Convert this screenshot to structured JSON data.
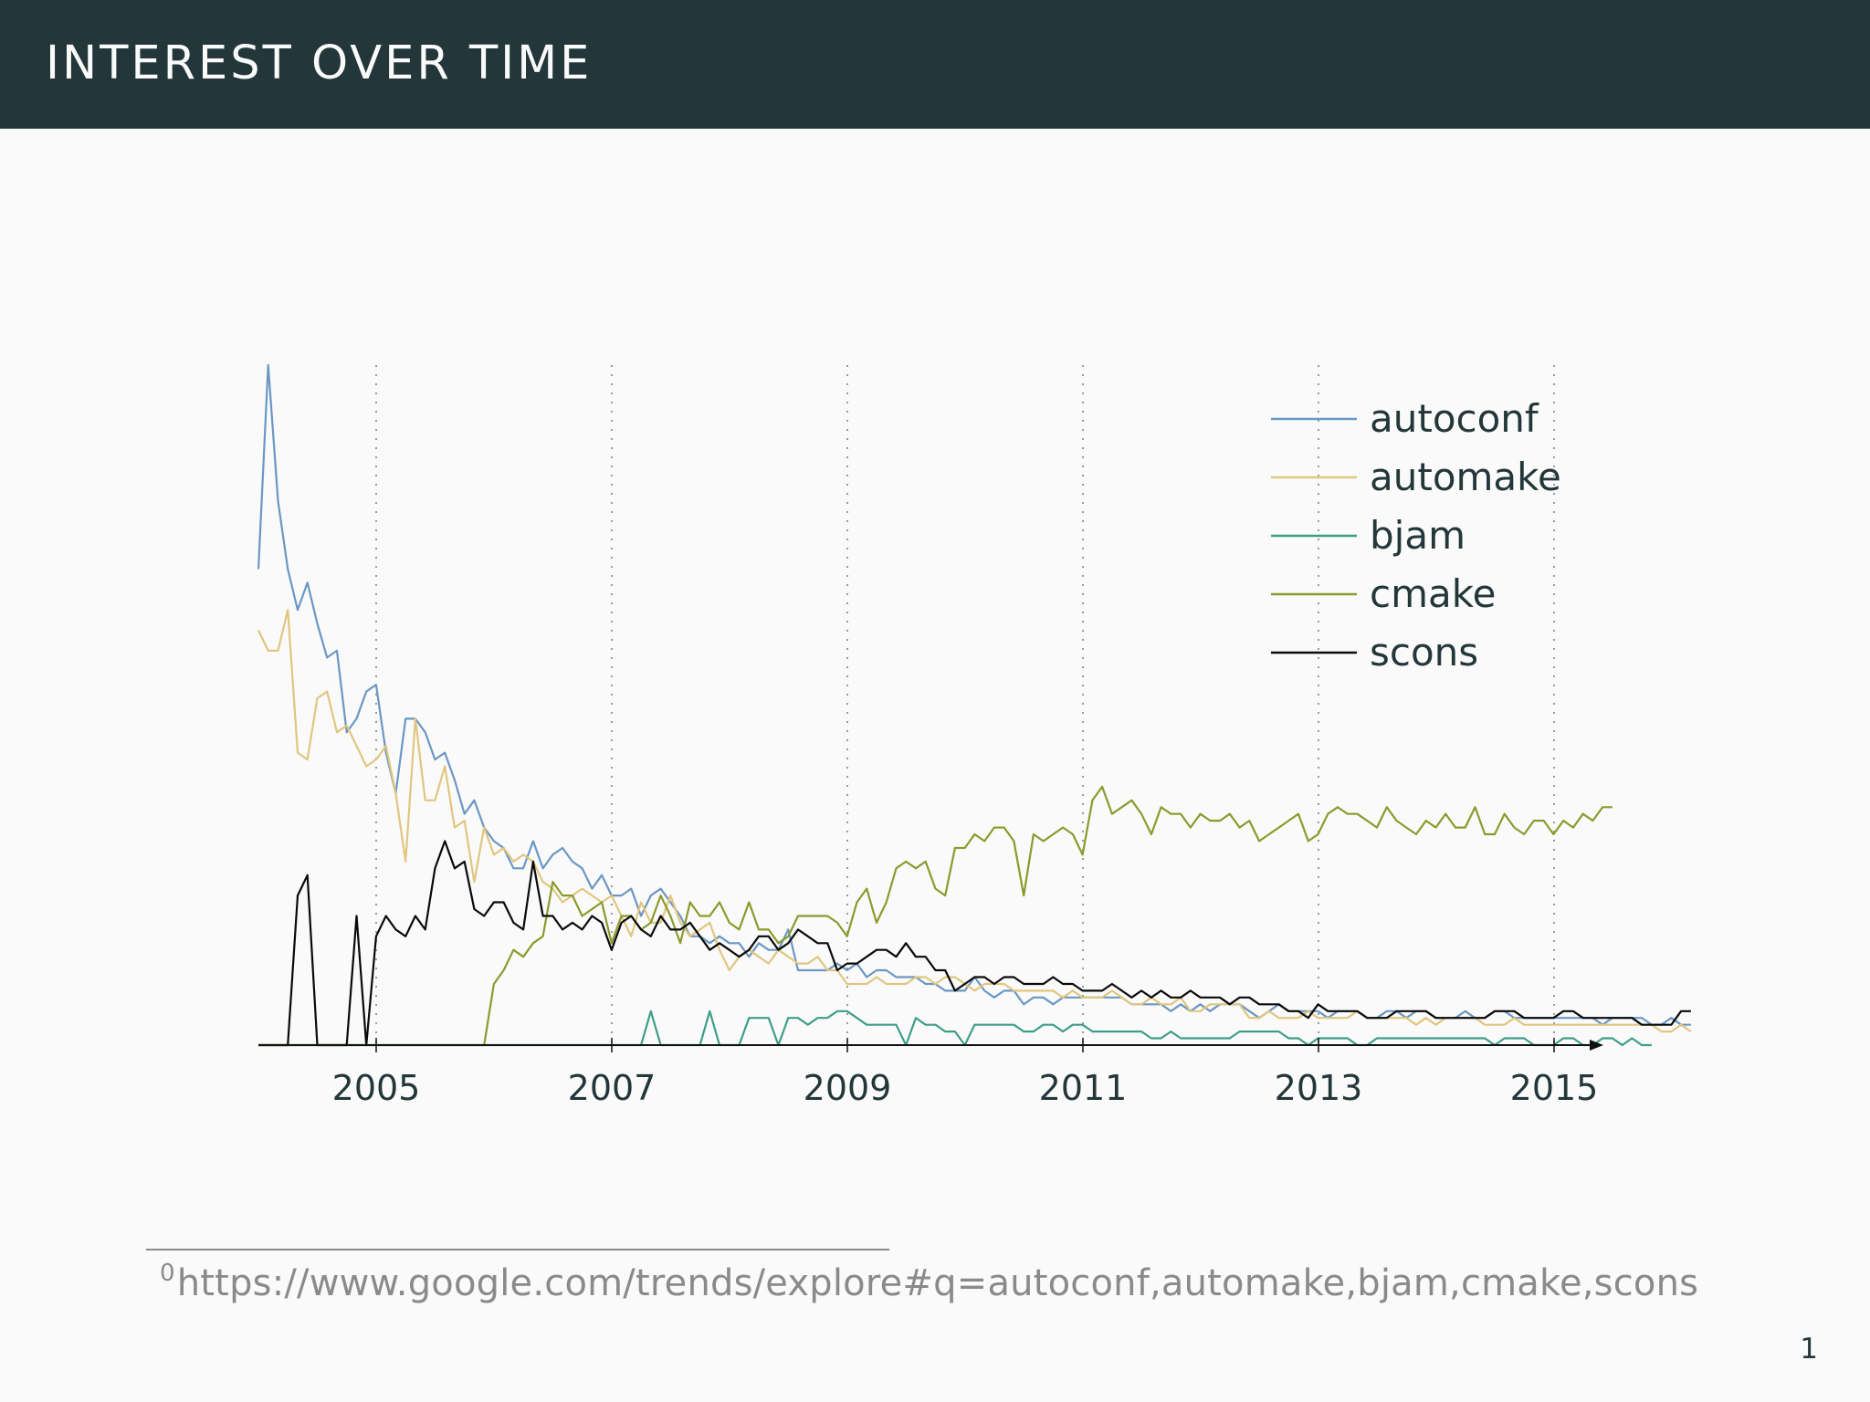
{
  "frame": {
    "title": "INTEREST OVER TIME",
    "page_number": "1"
  },
  "footnote": {
    "marker": "0",
    "text": "https://www.google.com/trends/explore#q=autoconf,automake,bjam,cmake,scons"
  },
  "chart_data": {
    "type": "line",
    "title": "",
    "xlabel": "",
    "ylabel": "",
    "x_start": 2004.0,
    "x_step": 0.0833,
    "xlim": [
      2004.0,
      2015.3
    ],
    "ylim": [
      0,
      100
    ],
    "x_ticks": [
      2005,
      2007,
      2009,
      2011,
      2013,
      2015
    ],
    "x_tick_labels": [
      "2005",
      "2007",
      "2009",
      "2011",
      "2013",
      "2015"
    ],
    "grid": "vertical dotted at ticks",
    "legend": "top-right",
    "series": [
      {
        "name": "autoconf",
        "color": "#6b97c3",
        "values": [
          70,
          100,
          80,
          70,
          64,
          68,
          62,
          57,
          58,
          46,
          48,
          52,
          53,
          43,
          37,
          48,
          48,
          46,
          42,
          43,
          39,
          34,
          36,
          32,
          30,
          29,
          26,
          26,
          30,
          26,
          28,
          29,
          27,
          26,
          23,
          25,
          22,
          22,
          23,
          19,
          22,
          23,
          21,
          19,
          16,
          16,
          15,
          16,
          15,
          15,
          13,
          15,
          14,
          14,
          17,
          11,
          11,
          11,
          11,
          12,
          11,
          12,
          10,
          11,
          11,
          10,
          10,
          10,
          9,
          9,
          8,
          8,
          8,
          10,
          8,
          7,
          8,
          8,
          6,
          7,
          7,
          6,
          7,
          7,
          7,
          7,
          7,
          7,
          7,
          6,
          6,
          6,
          6,
          5,
          6,
          5,
          6,
          5,
          6,
          6,
          6,
          5,
          4,
          5,
          6,
          5,
          5,
          5,
          5,
          4,
          5,
          5,
          5,
          4,
          4,
          5,
          5,
          4,
          5,
          5,
          4,
          4,
          4,
          5,
          4,
          4,
          5,
          5,
          4,
          4,
          4,
          4,
          4,
          4,
          4,
          4,
          4,
          3,
          4,
          4,
          4,
          4,
          3,
          3,
          4,
          3,
          3
        ]
      },
      {
        "name": "automake",
        "color": "#e0c67f",
        "values": [
          61,
          58,
          58,
          64,
          43,
          42,
          51,
          52,
          46,
          47,
          44,
          41,
          42,
          44,
          37,
          27,
          48,
          36,
          36,
          41,
          32,
          33,
          24,
          32,
          28,
          29,
          27,
          28,
          27,
          24,
          23,
          21,
          22,
          23,
          22,
          21,
          22,
          19,
          16,
          21,
          18,
          18,
          22,
          18,
          16,
          17,
          18,
          14,
          11,
          13,
          14,
          13,
          12,
          14,
          13,
          12,
          12,
          13,
          11,
          11,
          9,
          9,
          9,
          10,
          9,
          9,
          9,
          10,
          10,
          9,
          10,
          10,
          9,
          8,
          9,
          9,
          9,
          8,
          8,
          8,
          8,
          8,
          7,
          8,
          7,
          7,
          7,
          8,
          7,
          6,
          6,
          7,
          6,
          6,
          7,
          5,
          5,
          6,
          6,
          6,
          6,
          4,
          4,
          5,
          4,
          4,
          4,
          5,
          4,
          4,
          4,
          4,
          5,
          4,
          4,
          4,
          4,
          4,
          3,
          4,
          3,
          4,
          4,
          4,
          4,
          3,
          3,
          3,
          4,
          3,
          3,
          3,
          3,
          3,
          3,
          3,
          3,
          3,
          3,
          3,
          3,
          3,
          3,
          2,
          2,
          3,
          2
        ]
      },
      {
        "name": "bjam",
        "color": "#3f9e86",
        "values": [
          0,
          0,
          0,
          0,
          0,
          0,
          0,
          0,
          0,
          0,
          0,
          0,
          0,
          0,
          0,
          0,
          0,
          0,
          0,
          0,
          0,
          0,
          0,
          0,
          0,
          0,
          0,
          0,
          0,
          0,
          0,
          0,
          0,
          0,
          0,
          0,
          0,
          0,
          0,
          0,
          5,
          0,
          0,
          0,
          0,
          0,
          5,
          0,
          0,
          0,
          4,
          4,
          4,
          0,
          4,
          4,
          3,
          4,
          4,
          5,
          5,
          4,
          3,
          3,
          3,
          3,
          0,
          4,
          3,
          3,
          2,
          2,
          0,
          3,
          3,
          3,
          3,
          3,
          2,
          2,
          3,
          3,
          2,
          3,
          3,
          2,
          2,
          2,
          2,
          2,
          2,
          1,
          1,
          2,
          1,
          1,
          1,
          1,
          1,
          1,
          2,
          2,
          2,
          2,
          2,
          1,
          1,
          0,
          1,
          1,
          1,
          1,
          0,
          0,
          1,
          1,
          1,
          1,
          1,
          1,
          1,
          1,
          1,
          1,
          1,
          1,
          0,
          1,
          1,
          1,
          0,
          0,
          0,
          1,
          1,
          0,
          0,
          1,
          1,
          0,
          1,
          0,
          0
        ]
      },
      {
        "name": "cmake",
        "color": "#8c9a2c",
        "values": [
          0,
          0,
          0,
          0,
          0,
          0,
          0,
          0,
          0,
          0,
          0,
          0,
          0,
          0,
          0,
          0,
          0,
          0,
          0,
          0,
          0,
          0,
          0,
          0,
          9,
          11,
          14,
          13,
          15,
          16,
          24,
          22,
          22,
          19,
          20,
          21,
          15,
          19,
          19,
          17,
          18,
          22,
          19,
          15,
          21,
          19,
          19,
          21,
          18,
          17,
          21,
          17,
          17,
          15,
          16,
          19,
          19,
          19,
          19,
          18,
          16,
          21,
          23,
          18,
          21,
          26,
          27,
          26,
          27,
          23,
          22,
          29,
          29,
          31,
          30,
          32,
          32,
          30,
          22,
          31,
          30,
          31,
          32,
          31,
          28,
          36,
          38,
          34,
          35,
          36,
          34,
          31,
          35,
          34,
          34,
          32,
          34,
          33,
          33,
          34,
          32,
          33,
          30,
          31,
          32,
          33,
          34,
          30,
          31,
          34,
          35,
          34,
          34,
          33,
          32,
          35,
          33,
          32,
          31,
          33,
          32,
          34,
          32,
          32,
          35,
          31,
          31,
          34,
          32,
          31,
          33,
          33,
          31,
          33,
          32,
          34,
          33,
          35,
          35
        ]
      },
      {
        "name": "scons",
        "color": "#0a0a0a",
        "values": [
          0,
          0,
          0,
          0,
          22,
          25,
          0,
          0,
          0,
          0,
          19,
          0,
          16,
          19,
          17,
          16,
          19,
          17,
          26,
          30,
          26,
          27,
          20,
          19,
          21,
          21,
          18,
          17,
          27,
          19,
          19,
          17,
          18,
          17,
          19,
          18,
          14,
          18,
          19,
          17,
          16,
          19,
          17,
          17,
          18,
          16,
          14,
          15,
          14,
          13,
          14,
          16,
          16,
          14,
          15,
          17,
          16,
          15,
          15,
          11,
          12,
          12,
          13,
          14,
          14,
          13,
          15,
          13,
          13,
          11,
          11,
          8,
          9,
          10,
          10,
          9,
          10,
          10,
          9,
          9,
          9,
          10,
          9,
          9,
          8,
          8,
          8,
          9,
          8,
          7,
          8,
          7,
          8,
          7,
          7,
          8,
          7,
          7,
          7,
          6,
          7,
          7,
          6,
          6,
          6,
          5,
          5,
          4,
          6,
          5,
          5,
          5,
          5,
          4,
          4,
          4,
          5,
          5,
          5,
          5,
          4,
          4,
          4,
          4,
          4,
          4,
          5,
          5,
          5,
          4,
          4,
          4,
          4,
          5,
          5,
          4,
          4,
          4,
          4,
          4,
          4,
          3,
          3,
          3,
          3,
          5,
          5
        ]
      }
    ]
  }
}
